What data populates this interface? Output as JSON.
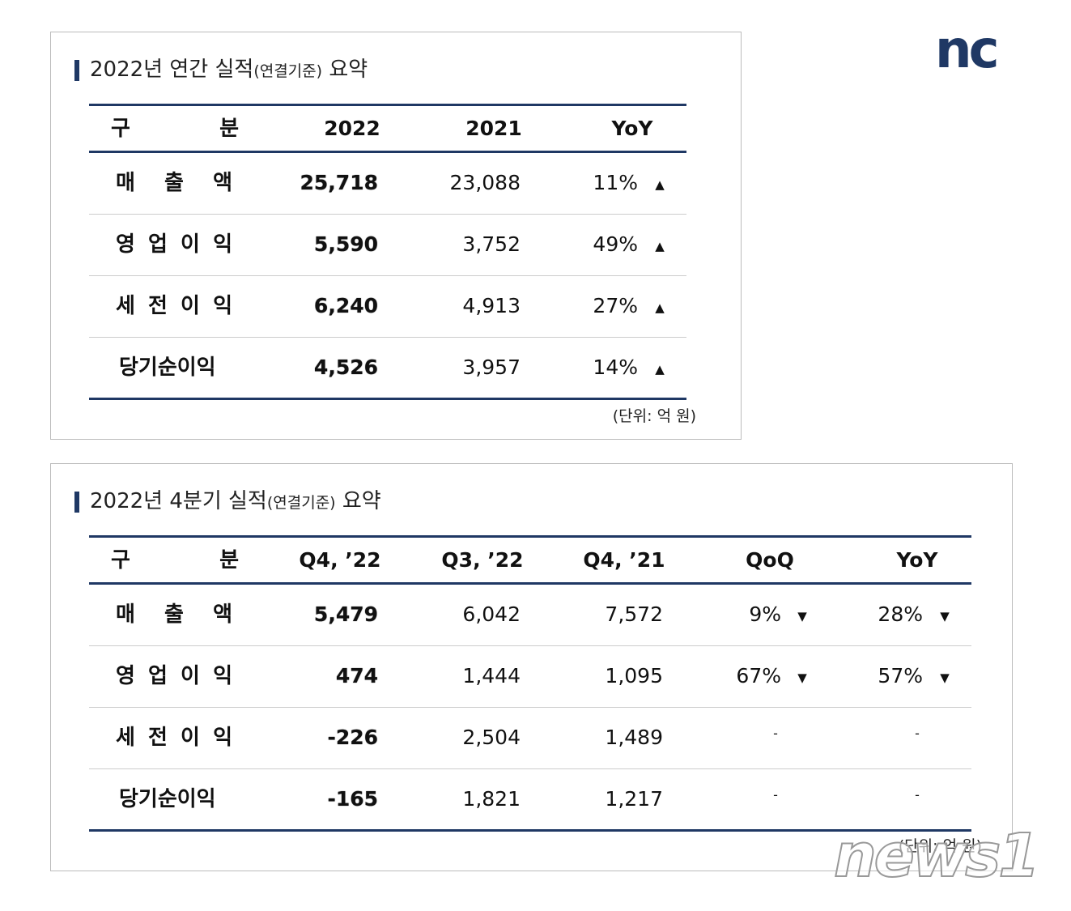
{
  "logo": "nc",
  "watermark": "news1",
  "annual": {
    "title": {
      "main": "2022년 연간 실적",
      "note": "(연결기준)",
      "end": "요약"
    },
    "header": [
      "구 분",
      "2022",
      "2021",
      "YoY"
    ],
    "rows": [
      [
        "매 출 액",
        "25,718",
        "23,088",
        "11%",
        "▲"
      ],
      [
        "영 업 이 익",
        "5,590",
        "3,752",
        "49%",
        "▲"
      ],
      [
        "세 전 이 익",
        "6,240",
        "4,913",
        "27%",
        "▲"
      ],
      [
        "당기순이익",
        "4,526",
        "3,957",
        "14%",
        "▲"
      ]
    ],
    "unit": "(단위: 억 원)"
  },
  "quarterly": {
    "title": {
      "main": "2022년 4분기 실적",
      "note": "(연결기준)",
      "end": "요약"
    },
    "header": [
      "구 분",
      "Q4, ’22",
      "Q3, ’22",
      "Q4, ’21",
      "QoQ",
      "YoY"
    ],
    "rows": [
      [
        "매 출 액",
        "5,479",
        "6,042",
        "7,572",
        "9%",
        "▼",
        "28%",
        "▼"
      ],
      [
        "영 업 이 익",
        "474",
        "1,444",
        "1,095",
        "67%",
        "▼",
        "57%",
        "▼"
      ],
      [
        "세 전 이 익",
        "-226",
        "2,504",
        "1,489",
        "-",
        "-"
      ],
      [
        "당기순이익",
        "-165",
        "1,821",
        "1,217",
        "-",
        "-"
      ]
    ],
    "unit": "(단위: 억 원)"
  }
}
